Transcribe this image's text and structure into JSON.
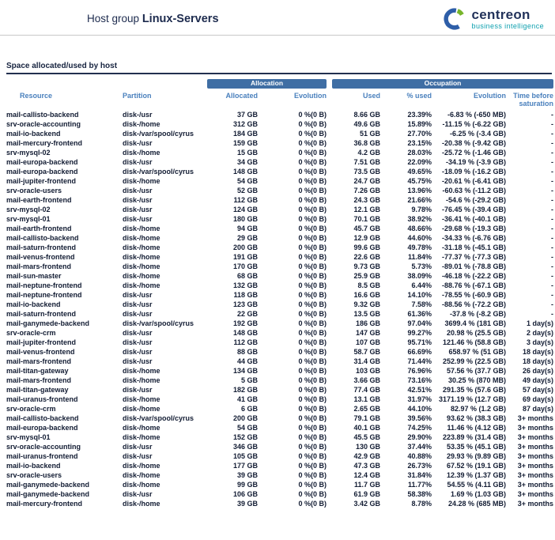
{
  "header": {
    "title_prefix": "Host group",
    "title_name": "Linux-Servers",
    "brand": {
      "name": "centreon",
      "tagline": "business intelligence",
      "logo_blue": "#2e5ea8",
      "logo_green": "#77b52b"
    }
  },
  "section": {
    "title": "Space allocated/used by host"
  },
  "colors": {
    "group_header_bg": "#3f6ea4",
    "column_header_text": "#4a80bd",
    "title_text": "#1d2b4e",
    "body_text": "#121c33",
    "tagline_teal": "#0c9fae"
  },
  "table": {
    "group_headers": [
      "Allocation",
      "Occupation"
    ],
    "columns": [
      "Resource",
      "Partition",
      "Allocated",
      "Evolution",
      "Used",
      "% used",
      "Evolution",
      "Time before saturation"
    ],
    "rows": [
      [
        "mail-callisto-backend",
        "disk-/usr",
        "37 GB",
        "0 %(0 B)",
        "8.66 GB",
        "23.39%",
        "-6.83 % (-650 MB)",
        "-"
      ],
      [
        "srv-oracle-accounting",
        "disk-/home",
        "312 GB",
        "0 %(0 B)",
        "49.6 GB",
        "15.89%",
        "-11.15 % (-6.22 GB)",
        "-"
      ],
      [
        "mail-io-backend",
        "disk-/var/spool/cyrus",
        "184 GB",
        "0 %(0 B)",
        "51 GB",
        "27.70%",
        "-6.25 % (-3.4 GB)",
        "-"
      ],
      [
        "mail-mercury-frontend",
        "disk-/usr",
        "159 GB",
        "0 %(0 B)",
        "36.8 GB",
        "23.15%",
        "-20.38 % (-9.42 GB)",
        "-"
      ],
      [
        "srv-mysql-02",
        "disk-/home",
        "15 GB",
        "0 %(0 B)",
        "4.2 GB",
        "28.03%",
        "-25.72 % (-1.46 GB)",
        "-"
      ],
      [
        "mail-europa-backend",
        "disk-/usr",
        "34 GB",
        "0 %(0 B)",
        "7.51 GB",
        "22.09%",
        "-34.19 % (-3.9 GB)",
        "-"
      ],
      [
        "mail-europa-backend",
        "disk-/var/spool/cyrus",
        "148 GB",
        "0 %(0 B)",
        "73.5 GB",
        "49.65%",
        "-18.09 % (-16.2 GB)",
        "-"
      ],
      [
        "mail-jupiter-frontend",
        "disk-/home",
        "54 GB",
        "0 %(0 B)",
        "24.7 GB",
        "45.75%",
        "-20.61 % (-6.41 GB)",
        "-"
      ],
      [
        "srv-oracle-users",
        "disk-/usr",
        "52 GB",
        "0 %(0 B)",
        "7.26 GB",
        "13.96%",
        "-60.63 % (-11.2 GB)",
        "-"
      ],
      [
        "mail-earth-frontend",
        "disk-/usr",
        "112 GB",
        "0 %(0 B)",
        "24.3 GB",
        "21.66%",
        "-54.6 % (-29.2 GB)",
        "-"
      ],
      [
        "srv-mysql-02",
        "disk-/usr",
        "124 GB",
        "0 %(0 B)",
        "12.1 GB",
        "9.78%",
        "-76.45 % (-39.4 GB)",
        "-"
      ],
      [
        "srv-mysql-01",
        "disk-/usr",
        "180 GB",
        "0 %(0 B)",
        "70.1 GB",
        "38.92%",
        "-36.41 % (-40.1 GB)",
        "-"
      ],
      [
        "mail-earth-frontend",
        "disk-/home",
        "94 GB",
        "0 %(0 B)",
        "45.7 GB",
        "48.66%",
        "-29.68 % (-19.3 GB)",
        "-"
      ],
      [
        "mail-callisto-backend",
        "disk-/home",
        "29 GB",
        "0 %(0 B)",
        "12.9 GB",
        "44.60%",
        "-34.33 % (-6.76 GB)",
        "-"
      ],
      [
        "mail-saturn-frontend",
        "disk-/home",
        "200 GB",
        "0 %(0 B)",
        "99.6 GB",
        "49.78%",
        "-31.18 % (-45.1 GB)",
        "-"
      ],
      [
        "mail-venus-frontend",
        "disk-/home",
        "191 GB",
        "0 %(0 B)",
        "22.6 GB",
        "11.84%",
        "-77.37 % (-77.3 GB)",
        "-"
      ],
      [
        "mail-mars-frontend",
        "disk-/home",
        "170 GB",
        "0 %(0 B)",
        "9.73 GB",
        "5.73%",
        "-89.01 % (-78.8 GB)",
        "-"
      ],
      [
        "mail-sun-master",
        "disk-/home",
        "68 GB",
        "0 %(0 B)",
        "25.9 GB",
        "38.09%",
        "-46.18 % (-22.2 GB)",
        "-"
      ],
      [
        "mail-neptune-frontend",
        "disk-/home",
        "132 GB",
        "0 %(0 B)",
        "8.5 GB",
        "6.44%",
        "-88.76 % (-67.1 GB)",
        "-"
      ],
      [
        "mail-neptune-frontend",
        "disk-/usr",
        "118 GB",
        "0 %(0 B)",
        "16.6 GB",
        "14.10%",
        "-78.55 % (-60.9 GB)",
        "-"
      ],
      [
        "mail-io-backend",
        "disk-/usr",
        "123 GB",
        "0 %(0 B)",
        "9.32 GB",
        "7.58%",
        "-88.56 % (-72.2 GB)",
        "-"
      ],
      [
        "mail-saturn-frontend",
        "disk-/usr",
        "22 GB",
        "0 %(0 B)",
        "13.5 GB",
        "61.36%",
        "-37.8 % (-8.2 GB)",
        "-"
      ],
      [
        "mail-ganymede-backend",
        "disk-/var/spool/cyrus",
        "192 GB",
        "0 %(0 B)",
        "186 GB",
        "97.04%",
        "3699.4 % (181 GB)",
        "1 day(s)"
      ],
      [
        "srv-oracle-crm",
        "disk-/usr",
        "148 GB",
        "0 %(0 B)",
        "147 GB",
        "99.27%",
        "20.98 % (25.5 GB)",
        "2 day(s)"
      ],
      [
        "mail-jupiter-frontend",
        "disk-/usr",
        "112 GB",
        "0 %(0 B)",
        "107 GB",
        "95.71%",
        "121.46 % (58.8 GB)",
        "3 day(s)"
      ],
      [
        "mail-venus-frontend",
        "disk-/usr",
        "88 GB",
        "0 %(0 B)",
        "58.7 GB",
        "66.69%",
        "658.97 % (51 GB)",
        "18 day(s)"
      ],
      [
        "mail-mars-frontend",
        "disk-/usr",
        "44 GB",
        "0 %(0 B)",
        "31.4 GB",
        "71.44%",
        "252.99 % (22.5 GB)",
        "18 day(s)"
      ],
      [
        "mail-titan-gateway",
        "disk-/home",
        "134 GB",
        "0 %(0 B)",
        "103 GB",
        "76.96%",
        "57.56 % (37.7 GB)",
        "26 day(s)"
      ],
      [
        "mail-mars-frontend",
        "disk-/home",
        "5 GB",
        "0 %(0 B)",
        "3.66 GB",
        "73.16%",
        "30.25 % (870 MB)",
        "49 day(s)"
      ],
      [
        "mail-titan-gateway",
        "disk-/usr",
        "182 GB",
        "0 %(0 B)",
        "77.4 GB",
        "42.51%",
        "291.35 % (57.6 GB)",
        "57 day(s)"
      ],
      [
        "mail-uranus-frontend",
        "disk-/home",
        "41 GB",
        "0 %(0 B)",
        "13.1 GB",
        "31.97%",
        "3171.19 % (12.7 GB)",
        "69 day(s)"
      ],
      [
        "srv-oracle-crm",
        "disk-/home",
        "6 GB",
        "0 %(0 B)",
        "2.65 GB",
        "44.10%",
        "82.97 % (1.2 GB)",
        "87 day(s)"
      ],
      [
        "mail-callisto-backend",
        "disk-/var/spool/cyrus",
        "200 GB",
        "0 %(0 B)",
        "79.1 GB",
        "39.56%",
        "93.62 % (38.3 GB)",
        "3+ months"
      ],
      [
        "mail-europa-backend",
        "disk-/home",
        "54 GB",
        "0 %(0 B)",
        "40.1 GB",
        "74.25%",
        "11.46 % (4.12 GB)",
        "3+ months"
      ],
      [
        "srv-mysql-01",
        "disk-/home",
        "152 GB",
        "0 %(0 B)",
        "45.5 GB",
        "29.90%",
        "223.89 % (31.4 GB)",
        "3+ months"
      ],
      [
        "srv-oracle-accounting",
        "disk-/usr",
        "346 GB",
        "0 %(0 B)",
        "130 GB",
        "37.44%",
        "53.35 % (45.1 GB)",
        "3+ months"
      ],
      [
        "mail-uranus-frontend",
        "disk-/usr",
        "105 GB",
        "0 %(0 B)",
        "42.9 GB",
        "40.88%",
        "29.93 % (9.89 GB)",
        "3+ months"
      ],
      [
        "mail-io-backend",
        "disk-/home",
        "177 GB",
        "0 %(0 B)",
        "47.3 GB",
        "26.73%",
        "67.52 % (19.1 GB)",
        "3+ months"
      ],
      [
        "srv-oracle-users",
        "disk-/home",
        "39 GB",
        "0 %(0 B)",
        "12.4 GB",
        "31.84%",
        "12.39 % (1.37 GB)",
        "3+ months"
      ],
      [
        "mail-ganymede-backend",
        "disk-/home",
        "99 GB",
        "0 %(0 B)",
        "11.7 GB",
        "11.77%",
        "54.55 % (4.11 GB)",
        "3+ months"
      ],
      [
        "mail-ganymede-backend",
        "disk-/usr",
        "106 GB",
        "0 %(0 B)",
        "61.9 GB",
        "58.38%",
        "1.69 % (1.03 GB)",
        "3+ months"
      ],
      [
        "mail-mercury-frontend",
        "disk-/home",
        "39 GB",
        "0 %(0 B)",
        "3.42 GB",
        "8.78%",
        "24.28 % (685 MB)",
        "3+ months"
      ]
    ]
  }
}
